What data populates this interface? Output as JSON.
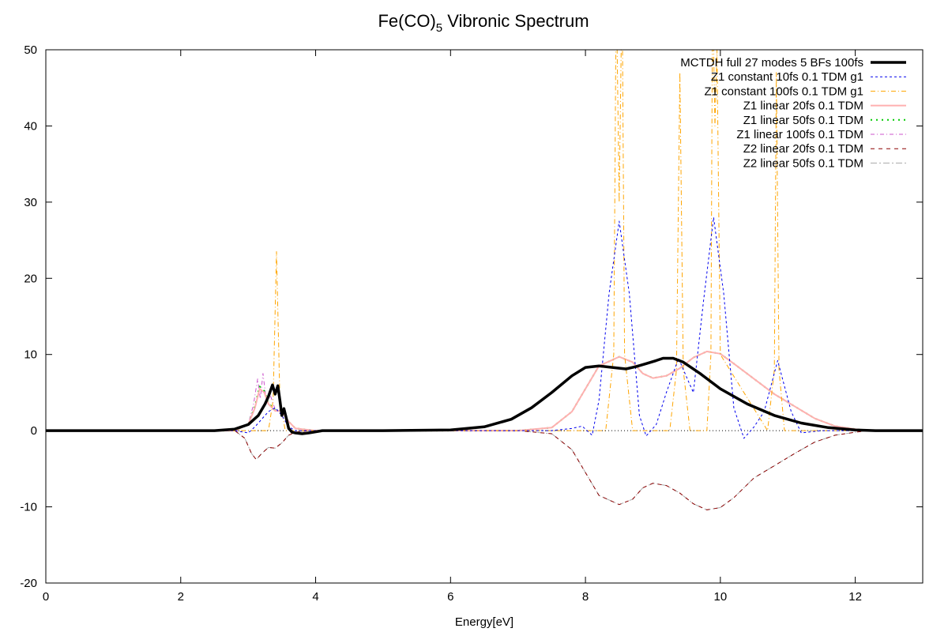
{
  "chart_data": {
    "type": "line",
    "title": {
      "main": "Fe(CO)",
      "subscript": "5",
      "suffix": " Vibronic Spectrum"
    },
    "xlabel": "Energy[eV]",
    "ylabel": "",
    "xlim": [
      0,
      13
    ],
    "ylim": [
      -20,
      50
    ],
    "xticks": [
      0,
      2,
      4,
      6,
      8,
      10,
      12
    ],
    "yticks": [
      -20,
      -10,
      0,
      10,
      20,
      30,
      40,
      50
    ],
    "grid": false,
    "zero_line": true,
    "legend_position": "top-right",
    "series": [
      {
        "name": "MCTDH full 27 modes 5 BFs 100fs",
        "color": "#000000",
        "dash": "solid",
        "width": 3.5,
        "x": [
          0,
          2.5,
          2.8,
          3.0,
          3.15,
          3.25,
          3.3,
          3.36,
          3.4,
          3.44,
          3.47,
          3.5,
          3.53,
          3.56,
          3.6,
          3.65,
          3.7,
          3.8,
          3.9,
          4.1,
          5,
          6,
          6.5,
          6.9,
          7.2,
          7.5,
          7.8,
          8.0,
          8.2,
          8.4,
          8.6,
          8.75,
          8.9,
          9.05,
          9.15,
          9.3,
          9.45,
          9.7,
          10,
          10.4,
          10.8,
          11.2,
          11.6,
          12,
          12.3,
          13
        ],
        "y": [
          0,
          0,
          0.2,
          0.8,
          2.0,
          3.5,
          4.5,
          6.0,
          4.8,
          5.9,
          4.0,
          2.0,
          2.9,
          1.8,
          0.3,
          -0.2,
          -0.3,
          -0.4,
          -0.3,
          0,
          0,
          0.1,
          0.5,
          1.5,
          3.0,
          5.0,
          7.2,
          8.3,
          8.5,
          8.3,
          8.1,
          8.4,
          8.8,
          9.2,
          9.5,
          9.5,
          9.0,
          7.5,
          5.5,
          3.5,
          2.0,
          1.0,
          0.4,
          0.1,
          0,
          0
        ]
      },
      {
        "name": "Z1 constant 10fs 0.1 TDM g1",
        "color": "#0000ee",
        "dash": "3,3",
        "width": 1,
        "x": [
          0,
          2.8,
          3.0,
          3.1,
          3.2,
          3.3,
          3.4,
          3.5,
          3.6,
          3.7,
          4.0,
          6.0,
          7.5,
          7.8,
          7.95,
          8.1,
          8.2,
          8.35,
          8.5,
          8.65,
          8.8,
          8.9,
          9.05,
          9.2,
          9.38,
          9.5,
          9.6,
          9.75,
          9.9,
          10.05,
          10.2,
          10.35,
          10.5,
          10.65,
          10.85,
          11.05,
          11.2,
          11.5,
          12,
          13
        ],
        "y": [
          0,
          0,
          -0.3,
          0.5,
          1.5,
          2.5,
          3.0,
          2.0,
          0.5,
          0,
          0,
          0,
          0,
          0.3,
          0.6,
          -0.6,
          4,
          18,
          27.5,
          18,
          2,
          -0.7,
          0.8,
          5,
          9.5,
          7,
          5,
          17,
          28,
          18,
          3,
          -1,
          0.5,
          2.5,
          9.2,
          2.5,
          -0.3,
          0,
          0,
          0
        ]
      },
      {
        "name": "Z1 constant 100fs 0.1 TDM g1",
        "color": "#ffa500",
        "dash": "6,3,1,3",
        "width": 1,
        "x": [
          0,
          3.3,
          3.37,
          3.42,
          3.47,
          3.55,
          8.3,
          8.42,
          8.45,
          8.47,
          8.5,
          8.53,
          8.55,
          8.58,
          8.7,
          9.25,
          9.35,
          9.4,
          9.45,
          9.55,
          9.8,
          9.86,
          9.88,
          9.9,
          9.92,
          9.95,
          10.0,
          10.7,
          10.8,
          10.83,
          10.87,
          10.95,
          11.2,
          13
        ],
        "y": [
          0,
          0,
          4,
          23.5,
          4,
          0,
          0,
          10,
          50,
          50,
          30,
          50,
          50,
          10,
          0,
          0,
          8,
          47,
          8,
          0,
          0,
          10,
          50,
          50,
          40,
          50,
          10,
          0,
          8,
          47,
          8,
          0,
          0,
          0
        ]
      },
      {
        "name": "Z1 linear 20fs 0.1 TDM",
        "color": "#ffb0b0",
        "dash": "solid",
        "width": 2,
        "x": [
          0,
          2.8,
          3.0,
          3.1,
          3.17,
          3.24,
          3.3,
          3.4,
          3.5,
          3.6,
          3.7,
          4.0,
          7.0,
          7.5,
          7.8,
          8.0,
          8.2,
          8.5,
          8.7,
          8.85,
          9.0,
          9.2,
          9.4,
          9.6,
          9.8,
          10.0,
          10.2,
          10.5,
          10.8,
          11.1,
          11.4,
          11.7,
          12.0,
          12.2,
          13
        ],
        "y": [
          0,
          0,
          0.8,
          3.0,
          5.5,
          5.0,
          3.5,
          2.6,
          2.6,
          1.2,
          0.3,
          0,
          0,
          0.4,
          2.5,
          5.5,
          8.5,
          9.7,
          9.0,
          7.5,
          6.9,
          7.2,
          8.2,
          9.6,
          10.4,
          10.1,
          8.8,
          6.8,
          4.8,
          3.2,
          1.6,
          0.6,
          0.2,
          0,
          0
        ]
      },
      {
        "name": "Z1 linear 50fs 0.1 TDM",
        "color": "#00cc00",
        "dash": "2,5",
        "width": 2,
        "x": [
          0,
          2.8,
          3.0,
          3.1,
          3.17,
          3.24,
          3.3,
          3.4,
          3.5,
          3.6,
          3.7,
          4.0,
          7.0,
          7.5,
          7.8,
          8.0,
          8.2,
          8.5,
          8.7,
          8.85,
          9.0,
          9.2,
          9.4,
          9.6,
          9.8,
          10.0,
          10.2,
          10.5,
          10.8,
          11.1,
          11.4,
          11.7,
          12.0,
          12.2,
          13
        ],
        "y": [
          0,
          0,
          0.8,
          3.2,
          5.8,
          5.2,
          3.6,
          2.7,
          2.6,
          1.2,
          0.3,
          0,
          0,
          0.4,
          2.5,
          5.5,
          8.5,
          9.7,
          9.0,
          7.5,
          6.9,
          7.2,
          8.2,
          9.6,
          10.4,
          10.1,
          8.8,
          6.8,
          4.8,
          3.2,
          1.6,
          0.6,
          0.2,
          0,
          0
        ]
      },
      {
        "name": "Z1 linear 100fs 0.1 TDM",
        "color": "#cc55cc",
        "dash": "5,3,1,3",
        "width": 1,
        "x": [
          0,
          2.8,
          3.0,
          3.08,
          3.14,
          3.18,
          3.22,
          3.27,
          3.33,
          3.4,
          3.5,
          3.6,
          3.7,
          4.0,
          7.0,
          7.5,
          7.8,
          8.0,
          8.2,
          8.5,
          8.7,
          8.85,
          9.0,
          9.2,
          9.4,
          9.6,
          9.8,
          10.0,
          10.2,
          10.5,
          10.8,
          11.1,
          11.4,
          11.7,
          12.0,
          12.2,
          13
        ],
        "y": [
          0,
          0,
          0.8,
          3.5,
          6.8,
          4.2,
          7.5,
          3.8,
          4.6,
          2.8,
          2.6,
          1.2,
          0.3,
          0,
          0,
          0.4,
          2.5,
          5.5,
          8.5,
          9.7,
          9.0,
          7.5,
          6.9,
          7.2,
          8.2,
          9.6,
          10.4,
          10.1,
          8.8,
          6.8,
          4.8,
          3.2,
          1.6,
          0.6,
          0.2,
          0,
          0
        ]
      },
      {
        "name": "Z2 linear 20fs 0.1 TDM",
        "color": "#8b0000",
        "dash": "5,5",
        "width": 1,
        "x": [
          0,
          2.8,
          2.95,
          3.05,
          3.12,
          3.2,
          3.3,
          3.4,
          3.5,
          3.6,
          3.7,
          3.9,
          7.0,
          7.5,
          7.8,
          8.0,
          8.2,
          8.5,
          8.7,
          8.85,
          9.0,
          9.2,
          9.4,
          9.6,
          9.8,
          10.0,
          10.2,
          10.5,
          10.8,
          11.1,
          11.4,
          11.7,
          12.0,
          12.2,
          13
        ],
        "y": [
          0,
          0,
          -1.0,
          -3.0,
          -3.8,
          -3.0,
          -2.2,
          -2.3,
          -1.6,
          -0.6,
          -0.2,
          0,
          0,
          -0.4,
          -2.5,
          -5.5,
          -8.5,
          -9.7,
          -9.0,
          -7.5,
          -6.9,
          -7.2,
          -8.2,
          -9.6,
          -10.4,
          -10.1,
          -8.8,
          -6.2,
          -4.6,
          -3.0,
          -1.5,
          -0.6,
          -0.2,
          0,
          0
        ]
      },
      {
        "name": "Z2 linear 50fs 0.1 TDM",
        "color": "#aaaaaa",
        "dash": "8,3,2,3",
        "width": 1,
        "x": [
          0,
          2.8,
          2.95,
          3.05,
          3.12,
          3.2,
          3.3,
          3.4,
          3.5,
          3.6,
          3.7,
          3.9,
          7.0,
          7.5,
          7.8,
          8.0,
          8.2,
          8.5,
          8.7,
          8.85,
          9.0,
          9.2,
          9.4,
          9.6,
          9.8,
          10.0,
          10.2,
          10.5,
          10.8,
          11.1,
          11.4,
          11.7,
          12.0,
          12.2,
          13
        ],
        "y": [
          0,
          0,
          -1.0,
          -3.0,
          -3.8,
          -3.0,
          -2.2,
          -2.3,
          -1.6,
          -0.6,
          -0.2,
          0,
          0,
          -0.4,
          -2.5,
          -5.5,
          -8.5,
          -9.7,
          -9.0,
          -7.5,
          -6.9,
          -7.2,
          -8.2,
          -9.6,
          -10.4,
          -10.1,
          -8.8,
          -6.2,
          -4.6,
          -3.0,
          -1.5,
          -0.6,
          -0.2,
          0,
          0
        ]
      }
    ]
  }
}
